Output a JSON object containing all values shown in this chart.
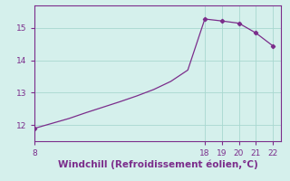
{
  "x_data": [
    8,
    9,
    10,
    11,
    12,
    13,
    14,
    15,
    16,
    17,
    18,
    19,
    20,
    21,
    22
  ],
  "y_data": [
    11.9,
    12.05,
    12.2,
    12.38,
    12.55,
    12.72,
    12.9,
    13.1,
    13.35,
    13.7,
    15.28,
    15.22,
    15.15,
    14.85,
    14.45
  ],
  "marker_x": [
    8,
    18,
    19,
    20,
    21,
    22
  ],
  "marker_y": [
    11.9,
    15.28,
    15.22,
    15.15,
    14.85,
    14.45
  ],
  "line_color": "#7B2D8B",
  "marker_color": "#7B2D8B",
  "bg_color": "#d5f0ec",
  "grid_color": "#a8d8d0",
  "xlabel": "Windchill (Refroidissement éolien,°C)",
  "xlim": [
    8,
    22.5
  ],
  "ylim": [
    11.5,
    15.7
  ],
  "xticks": [
    8,
    18,
    19,
    20,
    21,
    22
  ],
  "yticks": [
    12,
    13,
    14,
    15
  ],
  "tick_color": "#7B2D8B",
  "axis_color": "#7B2D8B",
  "xlabel_color": "#7B2D8B"
}
